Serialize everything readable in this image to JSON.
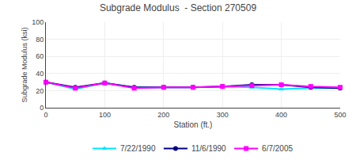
{
  "chart_data": {
    "type": "line",
    "title": "Subgrade Modulus  - Section 270509",
    "xlabel": "Station (ft.)",
    "ylabel": "Subgrade Modulus (ksi)",
    "x": [
      0,
      50,
      100,
      150,
      200,
      250,
      300,
      350,
      400,
      450,
      500
    ],
    "series": [
      {
        "name": "7/22/1990",
        "color": "#00E5FF",
        "marker": "triangle-up",
        "values": [
          30,
          22,
          29,
          24,
          24,
          24,
          25,
          24,
          22,
          23,
          23
        ]
      },
      {
        "name": "11/6/1990",
        "color": "#000080",
        "marker": "circle",
        "values": [
          30,
          24,
          29,
          24,
          24,
          24,
          25,
          27,
          27,
          24,
          23
        ]
      },
      {
        "name": "6/7/2005",
        "color": "#FF00FF",
        "marker": "square",
        "values": [
          30,
          23,
          29,
          23,
          24,
          24,
          25,
          26,
          27,
          25,
          24
        ]
      }
    ],
    "xlim": [
      0,
      500
    ],
    "ylim": [
      0,
      100
    ],
    "xticks": [
      0,
      100,
      200,
      300,
      400,
      500
    ],
    "yticks": [
      0,
      20,
      40,
      60,
      80,
      100
    ],
    "grid": true,
    "legend": "bottom"
  }
}
